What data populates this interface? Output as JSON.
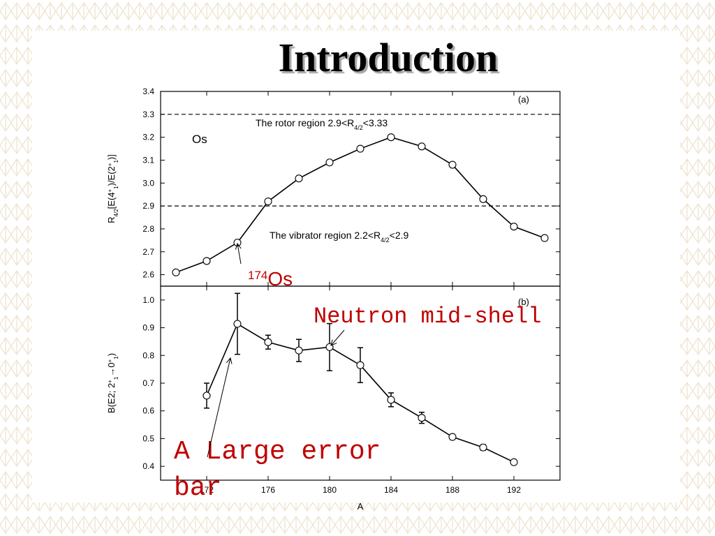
{
  "slide": {
    "title": "Introduction"
  },
  "chart_data": [
    {
      "type": "line",
      "x": [
        170,
        172,
        174,
        176,
        178,
        180,
        182,
        184,
        186,
        188,
        190,
        192,
        194
      ],
      "values": [
        2.61,
        2.66,
        2.74,
        2.92,
        3.02,
        3.09,
        3.15,
        3.2,
        3.16,
        3.08,
        2.93,
        2.81,
        2.76
      ],
      "color": "#000000",
      "marker": "open-circle",
      "xlim": [
        169,
        195
      ],
      "xticks": [
        172,
        176,
        180,
        184,
        188,
        192
      ],
      "xtick_labels": false,
      "ylim": [
        2.55,
        3.4
      ],
      "yticks": [
        2.6,
        2.7,
        2.8,
        2.9,
        {
          "value": 3,
          "label": "3.0"
        },
        3.1,
        3.2,
        3.3,
        3.4
      ],
      "hlines": [
        3.3,
        2.9
      ],
      "ylabel": {
        "parts": [
          {
            "text": "R"
          },
          {
            "text": "4/2",
            "shift": "sub"
          },
          {
            "text": "[E(4"
          },
          {
            "text": "+",
            "shift": "super"
          },
          {
            "text": "1",
            "shift": "sub"
          },
          {
            "text": ")/E(2"
          },
          {
            "text": "+",
            "shift": "super"
          },
          {
            "text": "1",
            "shift": "sub"
          },
          {
            "text": ")]"
          }
        ]
      },
      "annotations": [
        {
          "parts": [
            {
              "text": "(a)"
            }
          ],
          "color": "#000000"
        },
        {
          "parts": [
            {
              "text": "Os"
            }
          ],
          "color": "#000000"
        },
        {
          "parts": [
            {
              "text": "The rotor region 2.9<R"
            },
            {
              "text": "4/2",
              "shift": "sub"
            },
            {
              "text": "<3.33"
            }
          ],
          "color": "#000000"
        },
        {
          "parts": [
            {
              "text": "The vibrator region 2.2<R"
            },
            {
              "text": "4/2",
              "shift": "sub"
            },
            {
              "text": "<2.9"
            }
          ],
          "color": "#000000"
        },
        {
          "parts": [
            {
              "text": "174",
              "shift": "super"
            },
            {
              "text": "Os"
            }
          ],
          "color": "#c00000"
        }
      ]
    },
    {
      "type": "errorbar",
      "x": [
        172,
        174,
        176,
        178,
        180,
        182,
        184,
        186,
        188,
        190,
        192
      ],
      "values": [
        0.655,
        0.914,
        0.848,
        0.818,
        0.83,
        0.765,
        0.64,
        0.575,
        0.506,
        0.468,
        0.415
      ],
      "errors": [
        0.045,
        0.11,
        0.025,
        0.04,
        0.085,
        0.063,
        0.025,
        0.02,
        0.008,
        0.01,
        0.005
      ],
      "color": "#000000",
      "marker": "open-circle",
      "xlim": [
        169,
        195
      ],
      "xticks": [
        172,
        176,
        180,
        184,
        188,
        192
      ],
      "xtick_labels": true,
      "xlabel": "A",
      "ylim": [
        0.35,
        1.05
      ],
      "yticks": [
        0.4,
        0.5,
        0.6,
        0.7,
        0.8,
        0.9,
        {
          "value": 1,
          "label": "1.0"
        }
      ],
      "ylabel": {
        "parts": [
          {
            "text": "B(E2; 2"
          },
          {
            "text": "+",
            "shift": "super"
          },
          {
            "text": "1",
            "shift": "sub"
          },
          {
            "text": "→0"
          },
          {
            "text": "+",
            "shift": "super"
          },
          {
            "text": "1",
            "shift": "sub"
          },
          {
            "text": ")"
          }
        ]
      },
      "annotations": [
        {
          "parts": [
            {
              "text": "(b)"
            }
          ],
          "color": "#000000"
        },
        {
          "parts": [
            {
              "text": "Neutron mid-shell"
            }
          ],
          "color": "#c00000"
        },
        {
          "parts": [
            {
              "text": "A Large error bar"
            }
          ],
          "color": "#c00000",
          "wrap": true
        }
      ]
    }
  ]
}
